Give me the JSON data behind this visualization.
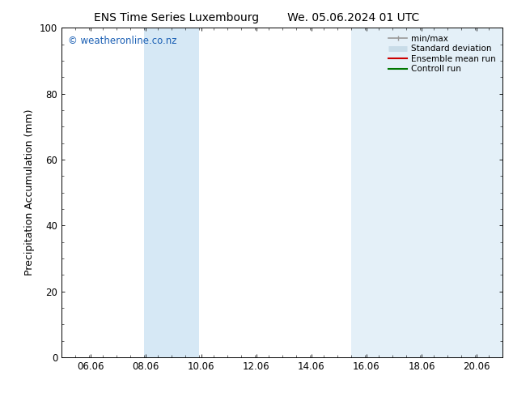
{
  "title_left": "ENS Time Series Luxembourg",
  "title_right": "We. 05.06.2024 01 UTC",
  "ylabel": "Precipitation Accumulation (mm)",
  "ylim": [
    0,
    100
  ],
  "yticks": [
    0,
    20,
    40,
    60,
    80,
    100
  ],
  "xlim": [
    5.0,
    21.0
  ],
  "xticks": [
    6.06,
    8.06,
    10.06,
    12.06,
    14.06,
    16.06,
    18.06,
    20.06
  ],
  "xticklabels": [
    "06.06",
    "08.06",
    "10.06",
    "12.06",
    "14.06",
    "16.06",
    "18.06",
    "20.06"
  ],
  "shaded_regions": [
    {
      "xmin": 8.0,
      "xmax": 10.0,
      "color": "#d6e8f5"
    },
    {
      "xmin": 15.5,
      "xmax": 21.0,
      "color": "#e4f0f8"
    }
  ],
  "background_color": "#ffffff",
  "watermark_text": "© weatheronline.co.nz",
  "watermark_color": "#1a5fb4",
  "legend_entries": [
    {
      "label": "min/max",
      "color": "#999999",
      "lw": 1.2,
      "style": "line_with_cap"
    },
    {
      "label": "Standard deviation",
      "color": "#c8dce8",
      "lw": 5,
      "style": "thick_line"
    },
    {
      "label": "Ensemble mean run",
      "color": "#cc0000",
      "lw": 1.5,
      "style": "line"
    },
    {
      "label": "Controll run",
      "color": "#007700",
      "lw": 1.5,
      "style": "line"
    }
  ],
  "title_fontsize": 10,
  "tick_fontsize": 8.5,
  "label_fontsize": 9,
  "watermark_fontsize": 8.5,
  "legend_fontsize": 7.5
}
